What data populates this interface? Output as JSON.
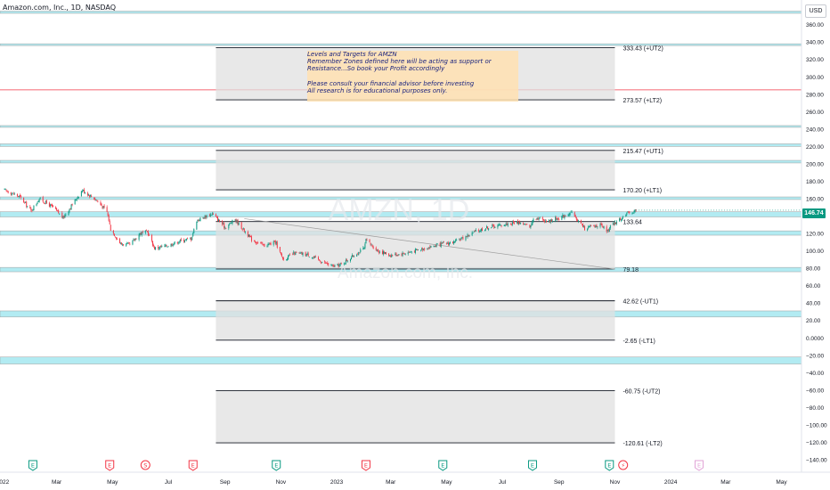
{
  "header": {
    "title": "Amazon.com, Inc., 1D, NASDAQ",
    "currency": "USD"
  },
  "watermark": {
    "ticker": "AMZN, 1D",
    "name": "Amazon.com, Inc."
  },
  "annotation": {
    "text": "Levels and Targets for AMZN\nRemember Zones defined here will be acting as support or\nResistance...So book your Profit accordingly\n\nPlease consult your financial advisor before investing\nAll research is for educational purposes only."
  },
  "last_price": {
    "label": "146.74",
    "value": 146.74,
    "color": "#089981"
  },
  "colors": {
    "up": "#089981",
    "down": "#f23645",
    "zone_fill": "#b2ebf2",
    "box_fill": "#e0e0e0",
    "note_fill": "#ffe0b2",
    "note_text": "#1a237e"
  },
  "chart_data": {
    "type": "candlestick",
    "y_scale": "linear",
    "ylim": [
      -140,
      375
    ],
    "xlim": [
      "2022-01-01",
      "2024-05-20"
    ],
    "y_ticks": [
      360,
      340,
      320,
      300,
      280,
      260,
      240,
      220,
      200,
      180,
      160,
      140,
      120,
      100,
      80,
      60,
      40,
      20,
      0,
      -20,
      -40,
      -60,
      -80,
      -100,
      -120,
      -140
    ],
    "y_tick_labels": [
      "360.00",
      "340.00",
      "320.00",
      "300.00",
      "280.00",
      "260.00",
      "240.00",
      "220.00",
      "200.00",
      "180.00",
      "160.00",
      "140.00",
      "120.00",
      "100.00",
      "80.00",
      "60.00",
      "40.00",
      "20.00",
      "0.0000",
      "−20.00",
      "−40.00",
      "−60.00",
      "−80.00",
      "−100.00",
      "−120.00",
      "−140.00"
    ],
    "x_ticks": [
      {
        "label": "2022",
        "date": "2022-01-01"
      },
      {
        "label": "Mar",
        "date": "2022-03-01"
      },
      {
        "label": "May",
        "date": "2022-05-01"
      },
      {
        "label": "Jul",
        "date": "2022-07-01"
      },
      {
        "label": "Sep",
        "date": "2022-09-01"
      },
      {
        "label": "Nov",
        "date": "2022-11-01"
      },
      {
        "label": "2023",
        "date": "2023-01-01"
      },
      {
        "label": "Mar",
        "date": "2023-03-01"
      },
      {
        "label": "May",
        "date": "2023-05-01"
      },
      {
        "label": "Jul",
        "date": "2023-07-01"
      },
      {
        "label": "Sep",
        "date": "2023-09-01"
      },
      {
        "label": "Nov",
        "date": "2023-11-01"
      },
      {
        "label": "2024",
        "date": "2024-01-01"
      },
      {
        "label": "Mar",
        "date": "2024-03-01"
      },
      {
        "label": "May",
        "date": "2024-05-01"
      }
    ],
    "price_path": [
      [
        "2022-01-03",
        170
      ],
      [
        "2022-01-20",
        162
      ],
      [
        "2022-02-01",
        146
      ],
      [
        "2022-02-10",
        160
      ],
      [
        "2022-02-25",
        150
      ],
      [
        "2022-03-08",
        138
      ],
      [
        "2022-03-29",
        170
      ],
      [
        "2022-04-14",
        158
      ],
      [
        "2022-04-25",
        145
      ],
      [
        "2022-04-29",
        125
      ],
      [
        "2022-05-10",
        108
      ],
      [
        "2022-05-20",
        107
      ],
      [
        "2022-05-31",
        120
      ],
      [
        "2022-06-08",
        122
      ],
      [
        "2022-06-16",
        103
      ],
      [
        "2022-06-30",
        106
      ],
      [
        "2022-07-15",
        112
      ],
      [
        "2022-07-26",
        114
      ],
      [
        "2022-08-01",
        135
      ],
      [
        "2022-08-18",
        143
      ],
      [
        "2022-09-01",
        127
      ],
      [
        "2022-09-12",
        136
      ],
      [
        "2022-09-30",
        113
      ],
      [
        "2022-10-14",
        106
      ],
      [
        "2022-10-27",
        110
      ],
      [
        "2022-10-28",
        103
      ],
      [
        "2022-11-04",
        90
      ],
      [
        "2022-11-15",
        97
      ],
      [
        "2022-11-30",
        96
      ],
      [
        "2022-12-15",
        88
      ],
      [
        "2022-12-28",
        82
      ],
      [
        "2023-01-05",
        84
      ],
      [
        "2023-01-31",
        103
      ],
      [
        "2023-02-02",
        112
      ],
      [
        "2023-02-15",
        100
      ],
      [
        "2023-03-01",
        95
      ],
      [
        "2023-03-15",
        97
      ],
      [
        "2023-04-03",
        102
      ],
      [
        "2023-04-27",
        108
      ],
      [
        "2023-05-10",
        110
      ],
      [
        "2023-06-01",
        122
      ],
      [
        "2023-06-15",
        127
      ],
      [
        "2023-07-01",
        130
      ],
      [
        "2023-07-18",
        133
      ],
      [
        "2023-08-01",
        128
      ],
      [
        "2023-08-04",
        139
      ],
      [
        "2023-08-20",
        134
      ],
      [
        "2023-09-01",
        138
      ],
      [
        "2023-09-14",
        144
      ],
      [
        "2023-09-29",
        126
      ],
      [
        "2023-10-15",
        130
      ],
      [
        "2023-10-25",
        122
      ],
      [
        "2023-10-27",
        128
      ],
      [
        "2023-11-15",
        143
      ],
      [
        "2023-11-24",
        146.74
      ]
    ],
    "levels": [
      {
        "label": "333.43 (+UT2)",
        "value": 333.43
      },
      {
        "label": "273.57 (+LT2)",
        "value": 273.57
      },
      {
        "label": "215.47 (+UT1)",
        "value": 215.47
      },
      {
        "label": "170.20 (+LT1)",
        "value": 170.2
      },
      {
        "label": "133.64",
        "value": 133.64
      },
      {
        "label": "79.18",
        "value": 79.18
      },
      {
        "label": "42.62 (-UT1)",
        "value": 42.62
      },
      {
        "label": "-2.65 (-LT1)",
        "value": -2.65
      },
      {
        "label": "-60.75 (-UT2)",
        "value": -60.75
      },
      {
        "label": "-120.61 (-LT2)",
        "value": -120.61
      }
    ],
    "target_boxes": [
      {
        "from": 273.57,
        "to": 333.43
      },
      {
        "from": 170.2,
        "to": 215.47
      },
      {
        "from": 79.18,
        "to": 133.64
      },
      {
        "from": -2.65,
        "to": 42.62
      },
      {
        "from": -120.61,
        "to": -60.75
      }
    ],
    "box_dates": [
      "2022-08-22",
      "2023-11-01"
    ],
    "support_resistance_zones": [
      {
        "from": 373,
        "to": 375.5
      },
      {
        "from": 336,
        "to": 338
      },
      {
        "from": 242,
        "to": 244
      },
      {
        "from": 220,
        "to": 223
      },
      {
        "from": 201,
        "to": 204
      },
      {
        "from": 159,
        "to": 162
      },
      {
        "from": 139,
        "to": 145
      },
      {
        "from": 118,
        "to": 123
      },
      {
        "from": 76,
        "to": 81
      },
      {
        "from": 24,
        "to": 31
      },
      {
        "from": -22,
        "to": -30
      }
    ],
    "horizontal_lines": [
      {
        "value": 285,
        "color": "#f23645"
      }
    ],
    "trend_line": {
      "from": [
        "2022-09-22",
        137
      ],
      "to": [
        "2023-11-01",
        79
      ]
    },
    "event_markers": [
      {
        "symbol": "E",
        "kind": "earnings",
        "date": "2022-02-03",
        "color": "#089981"
      },
      {
        "symbol": "E",
        "kind": "earnings",
        "date": "2022-04-28",
        "color": "#f23645"
      },
      {
        "symbol": "S",
        "kind": "split",
        "date": "2022-06-06",
        "color": "#f23645"
      },
      {
        "symbol": "E",
        "kind": "earnings",
        "date": "2022-07-28",
        "color": "#f23645"
      },
      {
        "symbol": "E",
        "kind": "earnings",
        "date": "2022-10-27",
        "color": "#089981"
      },
      {
        "symbol": "E",
        "kind": "earnings",
        "date": "2023-02-02",
        "color": "#f23645"
      },
      {
        "symbol": "E",
        "kind": "earnings",
        "date": "2023-04-27",
        "color": "#089981"
      },
      {
        "symbol": "E",
        "kind": "earnings",
        "date": "2023-08-03",
        "color": "#089981"
      },
      {
        "symbol": "E",
        "kind": "earnings",
        "date": "2023-10-26",
        "color": "#089981"
      },
      {
        "symbol": "⚡",
        "kind": "news",
        "date": "2023-11-10",
        "color": "#f23645"
      },
      {
        "symbol": "E",
        "kind": "earnings",
        "date": "2024-02-01",
        "color": "#e1a3d6"
      }
    ]
  }
}
